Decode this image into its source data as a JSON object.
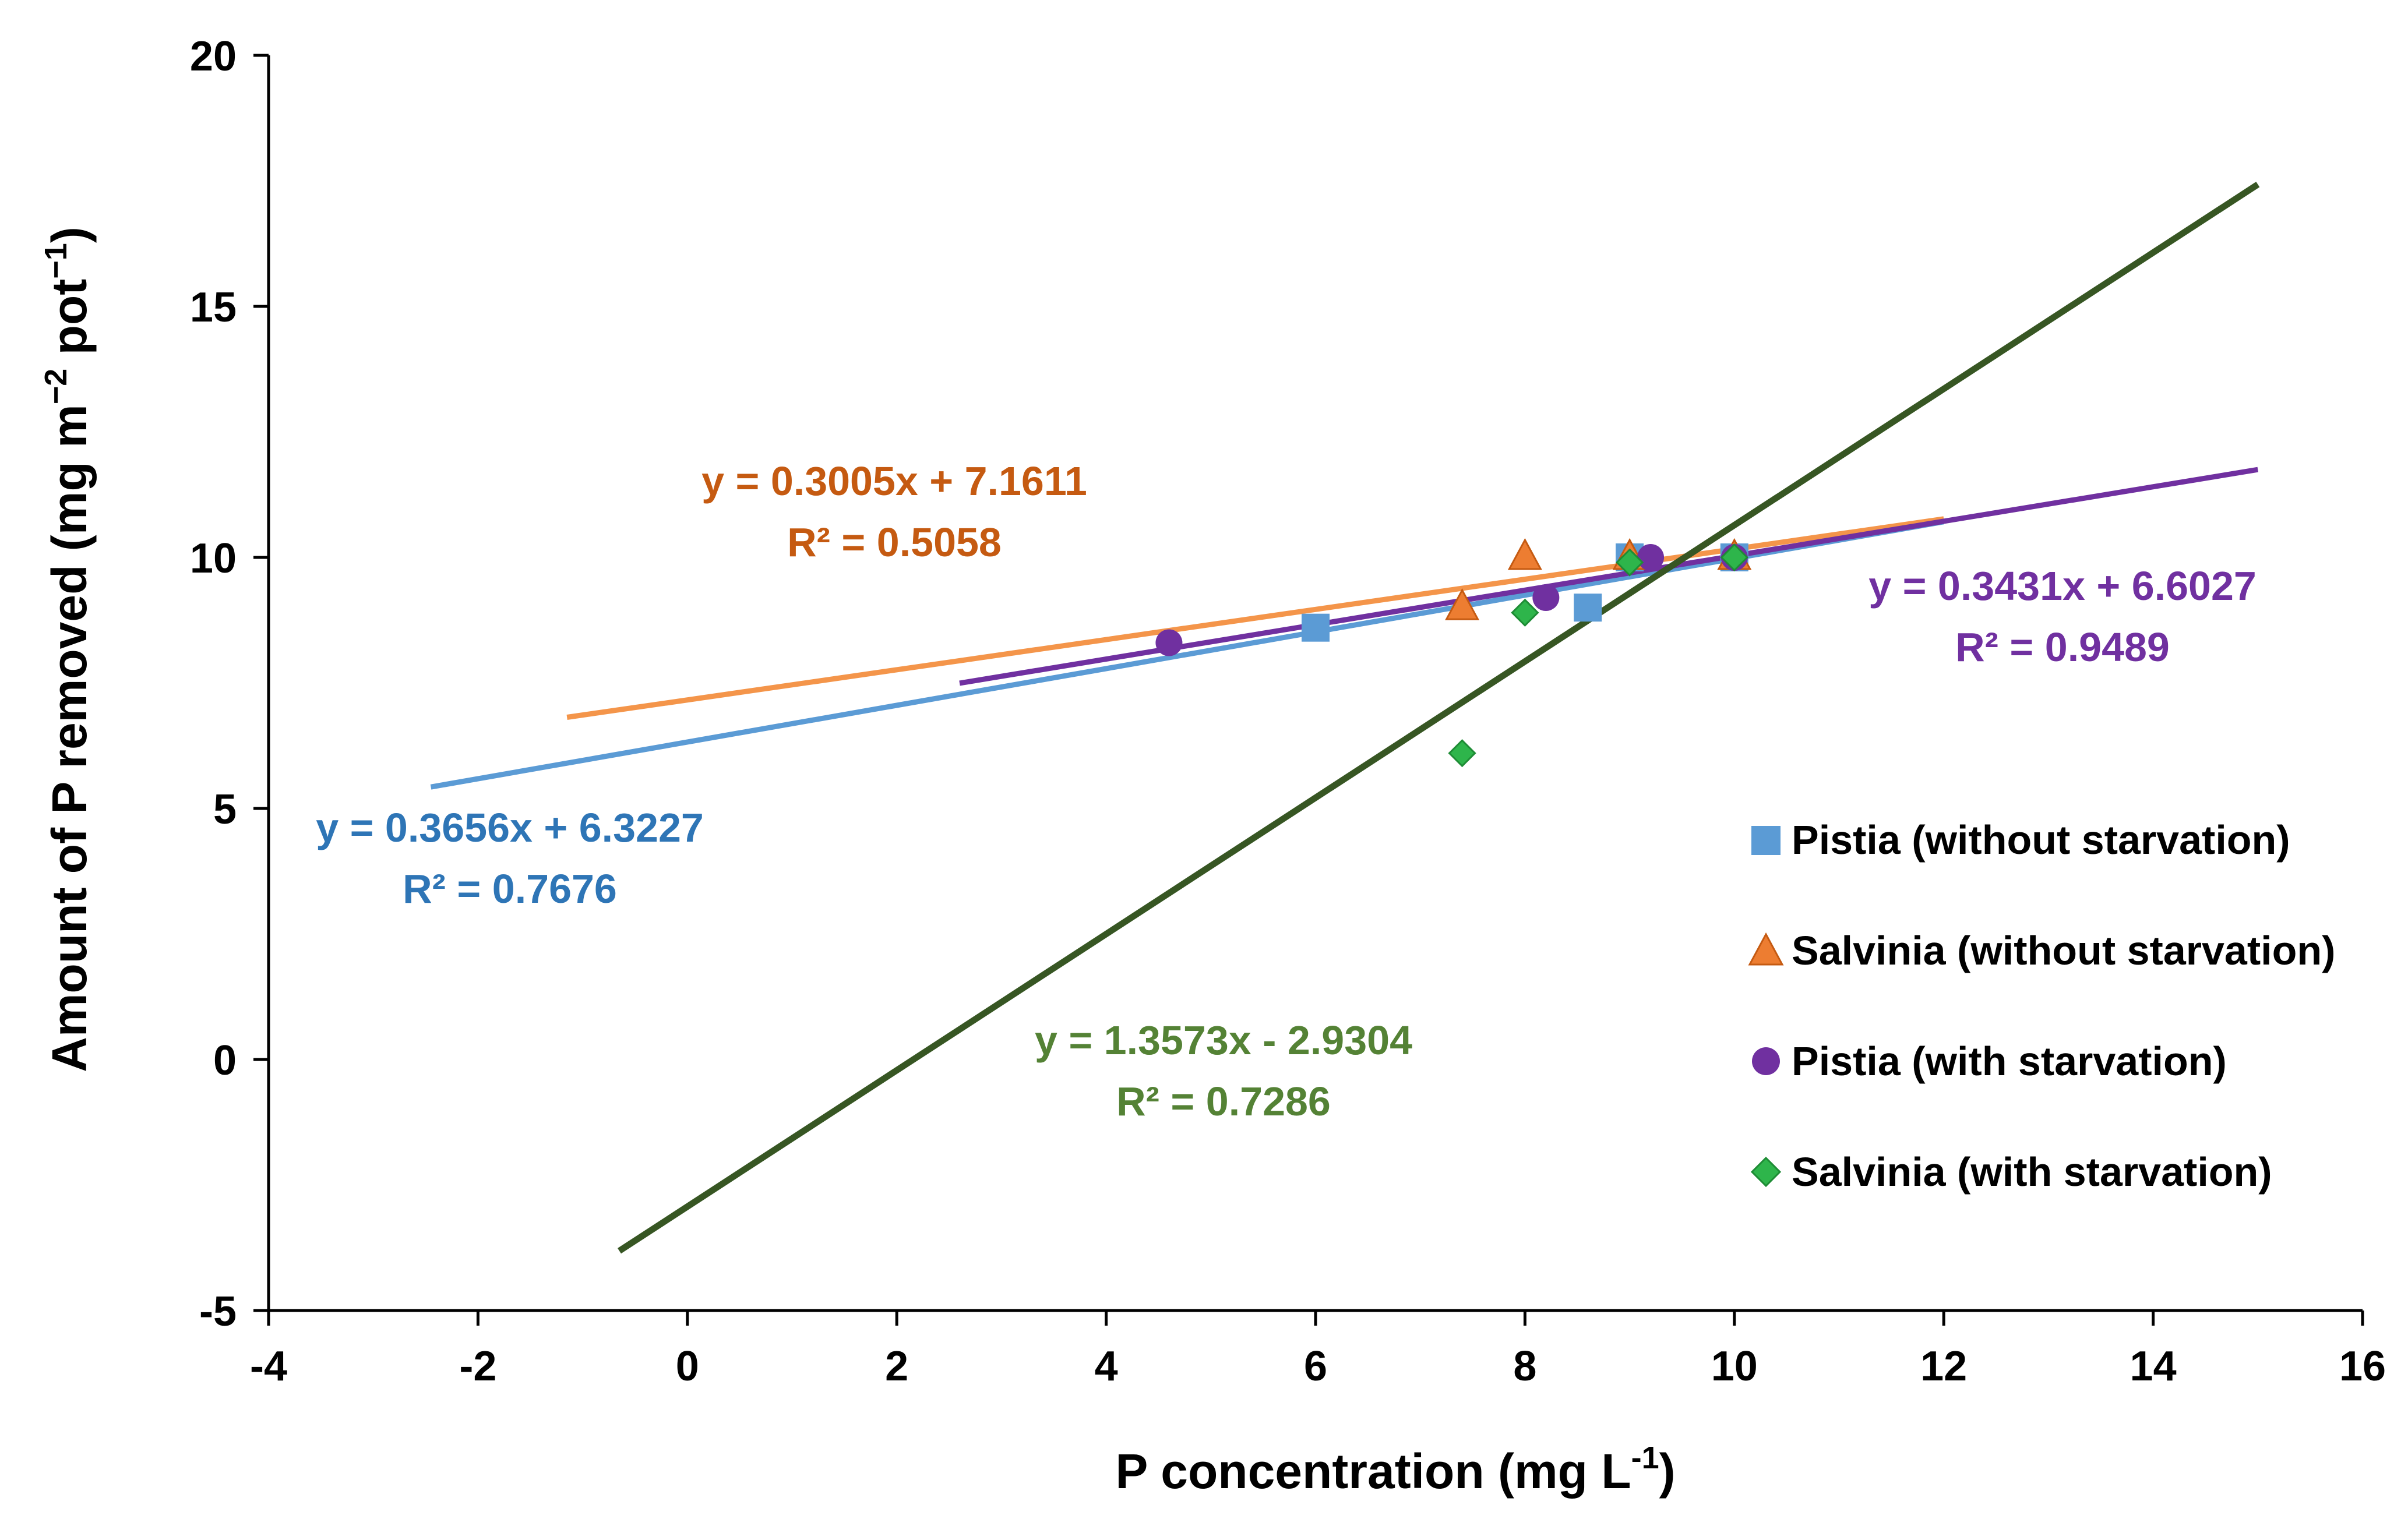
{
  "chart_data": {
    "type": "scatter",
    "title": "",
    "xlabel": "P concentration (mg L",
    "xlabel_sup": "-1",
    "xlabel_end": ")",
    "ylabel": "Amount of P removed (mg m",
    "ylabel_sup1": "−2",
    "ylabel_mid": " pot",
    "ylabel_sup2": "−1",
    "ylabel_end": ")",
    "xlim": [
      -4,
      16
    ],
    "ylim": [
      -5,
      20
    ],
    "x_ticks": [
      -4,
      -2,
      0,
      2,
      4,
      6,
      8,
      10,
      12,
      14,
      16
    ],
    "y_ticks": [
      -5,
      0,
      5,
      10,
      15,
      20
    ],
    "grid": false,
    "legend_position": "right",
    "series": [
      {
        "name": "Pistia (without starvation)",
        "marker": "square",
        "color": "#5B9BD5",
        "trend_color": "#5B9BD5",
        "label_color": "#2E75B6",
        "points": [
          [
            6.0,
            8.6
          ],
          [
            8.6,
            9.0
          ],
          [
            9.0,
            10.0
          ],
          [
            10.0,
            10.0
          ]
        ],
        "trendline": {
          "slope": 0.3656,
          "intercept": 6.3227,
          "x_range": [
            -2.45,
            12.0
          ]
        },
        "equation": "y = 0.3656x + 6.3227",
        "r2": "R² = 0.7676"
      },
      {
        "name": "Salvinia (without starvation)",
        "marker": "triangle",
        "color": "#ED7D31",
        "trend_color": "#F4954A",
        "label_color": "#C55A11",
        "points": [
          [
            7.4,
            9.0
          ],
          [
            8.0,
            10.0
          ],
          [
            9.0,
            10.0
          ],
          [
            10.0,
            10.0
          ]
        ],
        "trendline": {
          "slope": 0.3005,
          "intercept": 7.1611,
          "x_range": [
            -1.15,
            12.0
          ]
        },
        "equation": "y = 0.3005x + 7.1611",
        "r2": "R² = 0.5058"
      },
      {
        "name": "Pistia (with starvation)",
        "marker": "circle",
        "color": "#7030A0",
        "trend_color": "#7030A0",
        "label_color": "#7030A0",
        "points": [
          [
            4.6,
            8.3
          ],
          [
            8.2,
            9.2
          ],
          [
            9.2,
            10.0
          ],
          [
            10.0,
            10.0
          ]
        ],
        "trendline": {
          "slope": 0.3431,
          "intercept": 6.6027,
          "x_range": [
            2.6,
            15.0
          ]
        },
        "equation": "y = 0.3431x + 6.6027",
        "r2": "R² = 0.9489"
      },
      {
        "name": "Salvinia (with starvation)",
        "marker": "diamond",
        "color": "#2EB54B",
        "trend_color": "#375623",
        "label_color": "#548235",
        "points": [
          [
            7.4,
            6.1
          ],
          [
            8.0,
            8.9
          ],
          [
            9.0,
            9.9
          ],
          [
            10.0,
            10.0
          ]
        ],
        "trendline": {
          "slope": 1.3573,
          "intercept": -2.9304,
          "x_range": [
            -0.65,
            15.0
          ]
        },
        "equation": "y = 1.3573x - 2.9304",
        "r2": "R² = 0.7286"
      }
    ]
  }
}
